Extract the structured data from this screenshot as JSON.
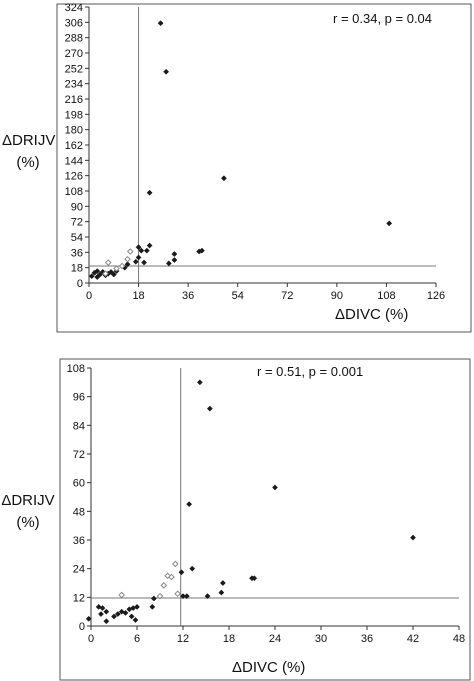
{
  "chart_data": [
    {
      "type": "scatter",
      "title": "",
      "ylabel_line1": "ΔDRIJV",
      "ylabel_line2": "(%)",
      "xlabel": "ΔDIVC (%)",
      "annotation": "r = 0.34, p = 0.04",
      "xlim": [
        0,
        126
      ],
      "ylim": [
        0,
        324
      ],
      "xticks": [
        0,
        18,
        36,
        54,
        72,
        90,
        108,
        126
      ],
      "yticks": [
        0,
        18,
        36,
        54,
        72,
        90,
        108,
        126,
        144,
        162,
        180,
        198,
        216,
        234,
        252,
        270,
        288,
        306,
        324
      ],
      "threshold_x": 18,
      "threshold_y": 20,
      "series": [
        {
          "marker": "filled-diamond",
          "points": [
            [
              1,
              8
            ],
            [
              2,
              12
            ],
            [
              3,
              14
            ],
            [
              3,
              7
            ],
            [
              4,
              10
            ],
            [
              5,
              13
            ],
            [
              6,
              9
            ],
            [
              7,
              11
            ],
            [
              8,
              13
            ],
            [
              9,
              10
            ],
            [
              10,
              14
            ],
            [
              13,
              18
            ],
            [
              14,
              22
            ],
            [
              17,
              25
            ],
            [
              18,
              30
            ],
            [
              18,
              42
            ],
            [
              19,
              38
            ],
            [
              20,
              24
            ],
            [
              21,
              38
            ],
            [
              22,
              106
            ],
            [
              22,
              44
            ],
            [
              26,
              305
            ],
            [
              28,
              248
            ],
            [
              29,
              23
            ],
            [
              31,
              27
            ],
            [
              31,
              34
            ],
            [
              40,
              37
            ],
            [
              41,
              38
            ],
            [
              49,
              123
            ],
            [
              109,
              70
            ]
          ]
        },
        {
          "marker": "open-diamond",
          "points": [
            [
              6,
              11
            ],
            [
              7,
              24
            ],
            [
              10,
              17
            ],
            [
              12,
              20
            ],
            [
              14,
              28
            ],
            [
              15,
              37
            ]
          ]
        }
      ]
    },
    {
      "type": "scatter",
      "title": "",
      "ylabel_line1": "ΔDRIJV",
      "ylabel_line2": "(%)",
      "xlabel": "ΔDIVC (%)",
      "annotation": "r = 0.51, p = 0.001",
      "xlim": [
        0,
        48
      ],
      "ylim": [
        0,
        108
      ],
      "xticks": [
        0,
        6,
        12,
        18,
        24,
        30,
        36,
        42,
        48
      ],
      "yticks": [
        0,
        12,
        24,
        36,
        48,
        60,
        72,
        84,
        96,
        108
      ],
      "threshold_x": 11.7,
      "threshold_y": 11.7,
      "series": [
        {
          "marker": "filled-diamond",
          "points": [
            [
              -0.3,
              3
            ],
            [
              1,
              8
            ],
            [
              1.3,
              5
            ],
            [
              1.5,
              7.5
            ],
            [
              2,
              2
            ],
            [
              2,
              6
            ],
            [
              3,
              4
            ],
            [
              3.5,
              5
            ],
            [
              4,
              6
            ],
            [
              4.5,
              5.5
            ],
            [
              5,
              7
            ],
            [
              5.3,
              4
            ],
            [
              5.5,
              7.5
            ],
            [
              5.8,
              2.5
            ],
            [
              6,
              8
            ],
            [
              8,
              8
            ],
            [
              8.2,
              11.5
            ],
            [
              11.8,
              22.5
            ],
            [
              12,
              12.5
            ],
            [
              12.5,
              12.5
            ],
            [
              12.8,
              51
            ],
            [
              13.2,
              24
            ],
            [
              14.2,
              102
            ],
            [
              15.2,
              12.5
            ],
            [
              15.5,
              91
            ],
            [
              17,
              14
            ],
            [
              17.2,
              18
            ],
            [
              21,
              20
            ],
            [
              21.3,
              20
            ],
            [
              24,
              58
            ],
            [
              42,
              37
            ]
          ]
        },
        {
          "marker": "open-diamond",
          "points": [
            [
              4,
              13
            ],
            [
              9,
              12.5
            ],
            [
              9.5,
              17
            ],
            [
              10,
              21
            ],
            [
              10.5,
              20.5
            ],
            [
              11,
              26
            ],
            [
              11.3,
              13.5
            ]
          ]
        }
      ]
    }
  ]
}
